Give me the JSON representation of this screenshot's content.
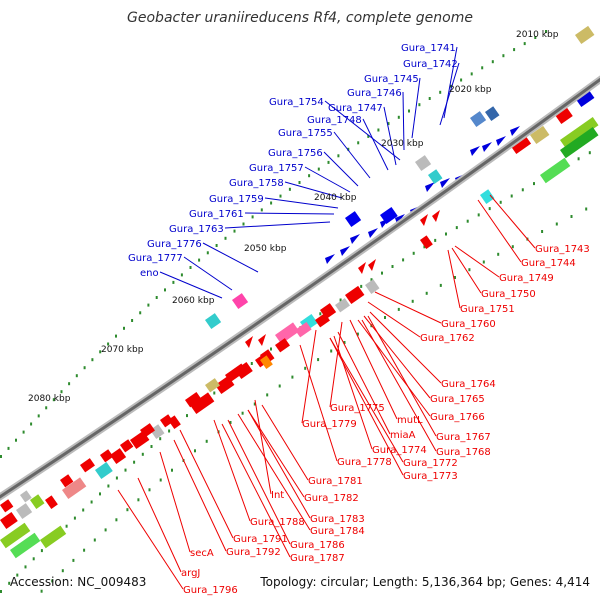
{
  "title": "Geobacter uraniireducens Rf4, complete genome",
  "accession": "Accession: NC_009483",
  "topology": "Topology: circular; Length: 5,136,364 bp; Genes: 4,414",
  "colors": {
    "forward_label": "#0000cc",
    "reverse_label": "#ee0000",
    "backbone": "#777777",
    "tick_dot": "#2e8b2e"
  },
  "kbp_markers": [
    "2010 kbp",
    "2020 kbp",
    "2030 kbp",
    "2040 kbp",
    "2050 kbp",
    "2060 kbp",
    "2070 kbp",
    "2080 kbp"
  ],
  "forward_labels": [
    "Gura_1741",
    "Gura_1742",
    "Gura_1745",
    "Gura_1746",
    "Gura_1754",
    "Gura_1747",
    "Gura_1748",
    "Gura_1755",
    "Gura_1756",
    "Gura_1757",
    "Gura_1758",
    "Gura_1759",
    "Gura_1761",
    "Gura_1763",
    "Gura_1776",
    "Gura_1777",
    "eno"
  ],
  "reverse_labels": [
    "Gura_1743",
    "Gura_1744",
    "Gura_1749",
    "Gura_1750",
    "Gura_1751",
    "Gura_1760",
    "Gura_1762",
    "Gura_1764",
    "Gura_1765",
    "Gura_1766",
    "Gura_1775",
    "mutL",
    "Gura_1779",
    "Gura_1767",
    "miaA",
    "Gura_1768",
    "Gura_1774",
    "Gura_1778",
    "Gura_1772",
    "Gura_1773",
    "Gura_1781",
    "Int",
    "Gura_1782",
    "Gura_1783",
    "Gura_1788",
    "Gura_1784",
    "Gura_1791",
    "Gura_1786",
    "secA",
    "Gura_1792",
    "Gura_1787",
    "argJ",
    "Gura_1796"
  ]
}
